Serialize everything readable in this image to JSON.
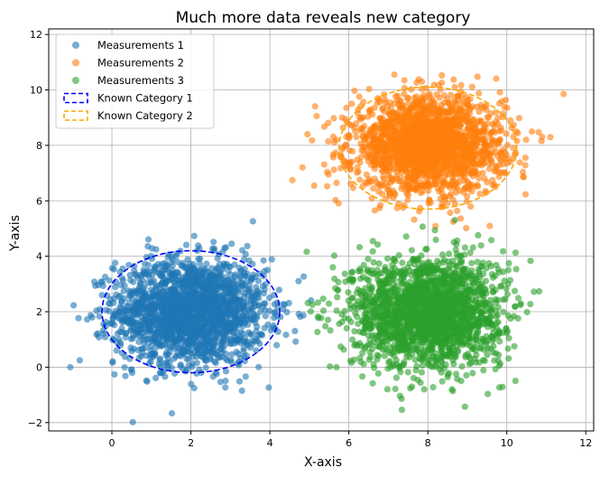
{
  "chart_data": {
    "type": "scatter",
    "title": "Much more data reveals new category",
    "xlabel": "X-axis",
    "ylabel": "Y-axis",
    "xlim": [
      -1.6,
      12.2
    ],
    "ylim": [
      -2.3,
      12.2
    ],
    "xticks": [
      0,
      2,
      4,
      6,
      8,
      10,
      12
    ],
    "yticks": [
      -2,
      0,
      2,
      4,
      6,
      8,
      10,
      12
    ],
    "grid": true,
    "legend_position": "top-left",
    "series": [
      {
        "name": "Measurements 1",
        "kind": "points",
        "color": "#1f77b4",
        "center": [
          2.0,
          2.0
        ],
        "spread": [
          0.95,
          0.95
        ],
        "count": 2000
      },
      {
        "name": "Measurements 2",
        "kind": "points",
        "color": "#ff7f0e",
        "center": [
          8.0,
          8.0
        ],
        "spread": [
          0.95,
          0.85
        ],
        "count": 2000
      },
      {
        "name": "Measurements 3",
        "kind": "points",
        "color": "#2ca02c",
        "center": [
          8.0,
          2.0
        ],
        "spread": [
          0.95,
          1.0
        ],
        "count": 2000
      }
    ],
    "shapes": [
      {
        "name": "Known Category 1",
        "kind": "ellipse",
        "color": "#0000ff",
        "center": [
          2.0,
          2.0
        ],
        "radii": [
          2.25,
          2.2
        ]
      },
      {
        "name": "Known Category 2",
        "kind": "ellipse",
        "color": "#ffa500",
        "center": [
          8.0,
          7.9
        ],
        "radii": [
          2.25,
          2.2
        ]
      }
    ]
  }
}
